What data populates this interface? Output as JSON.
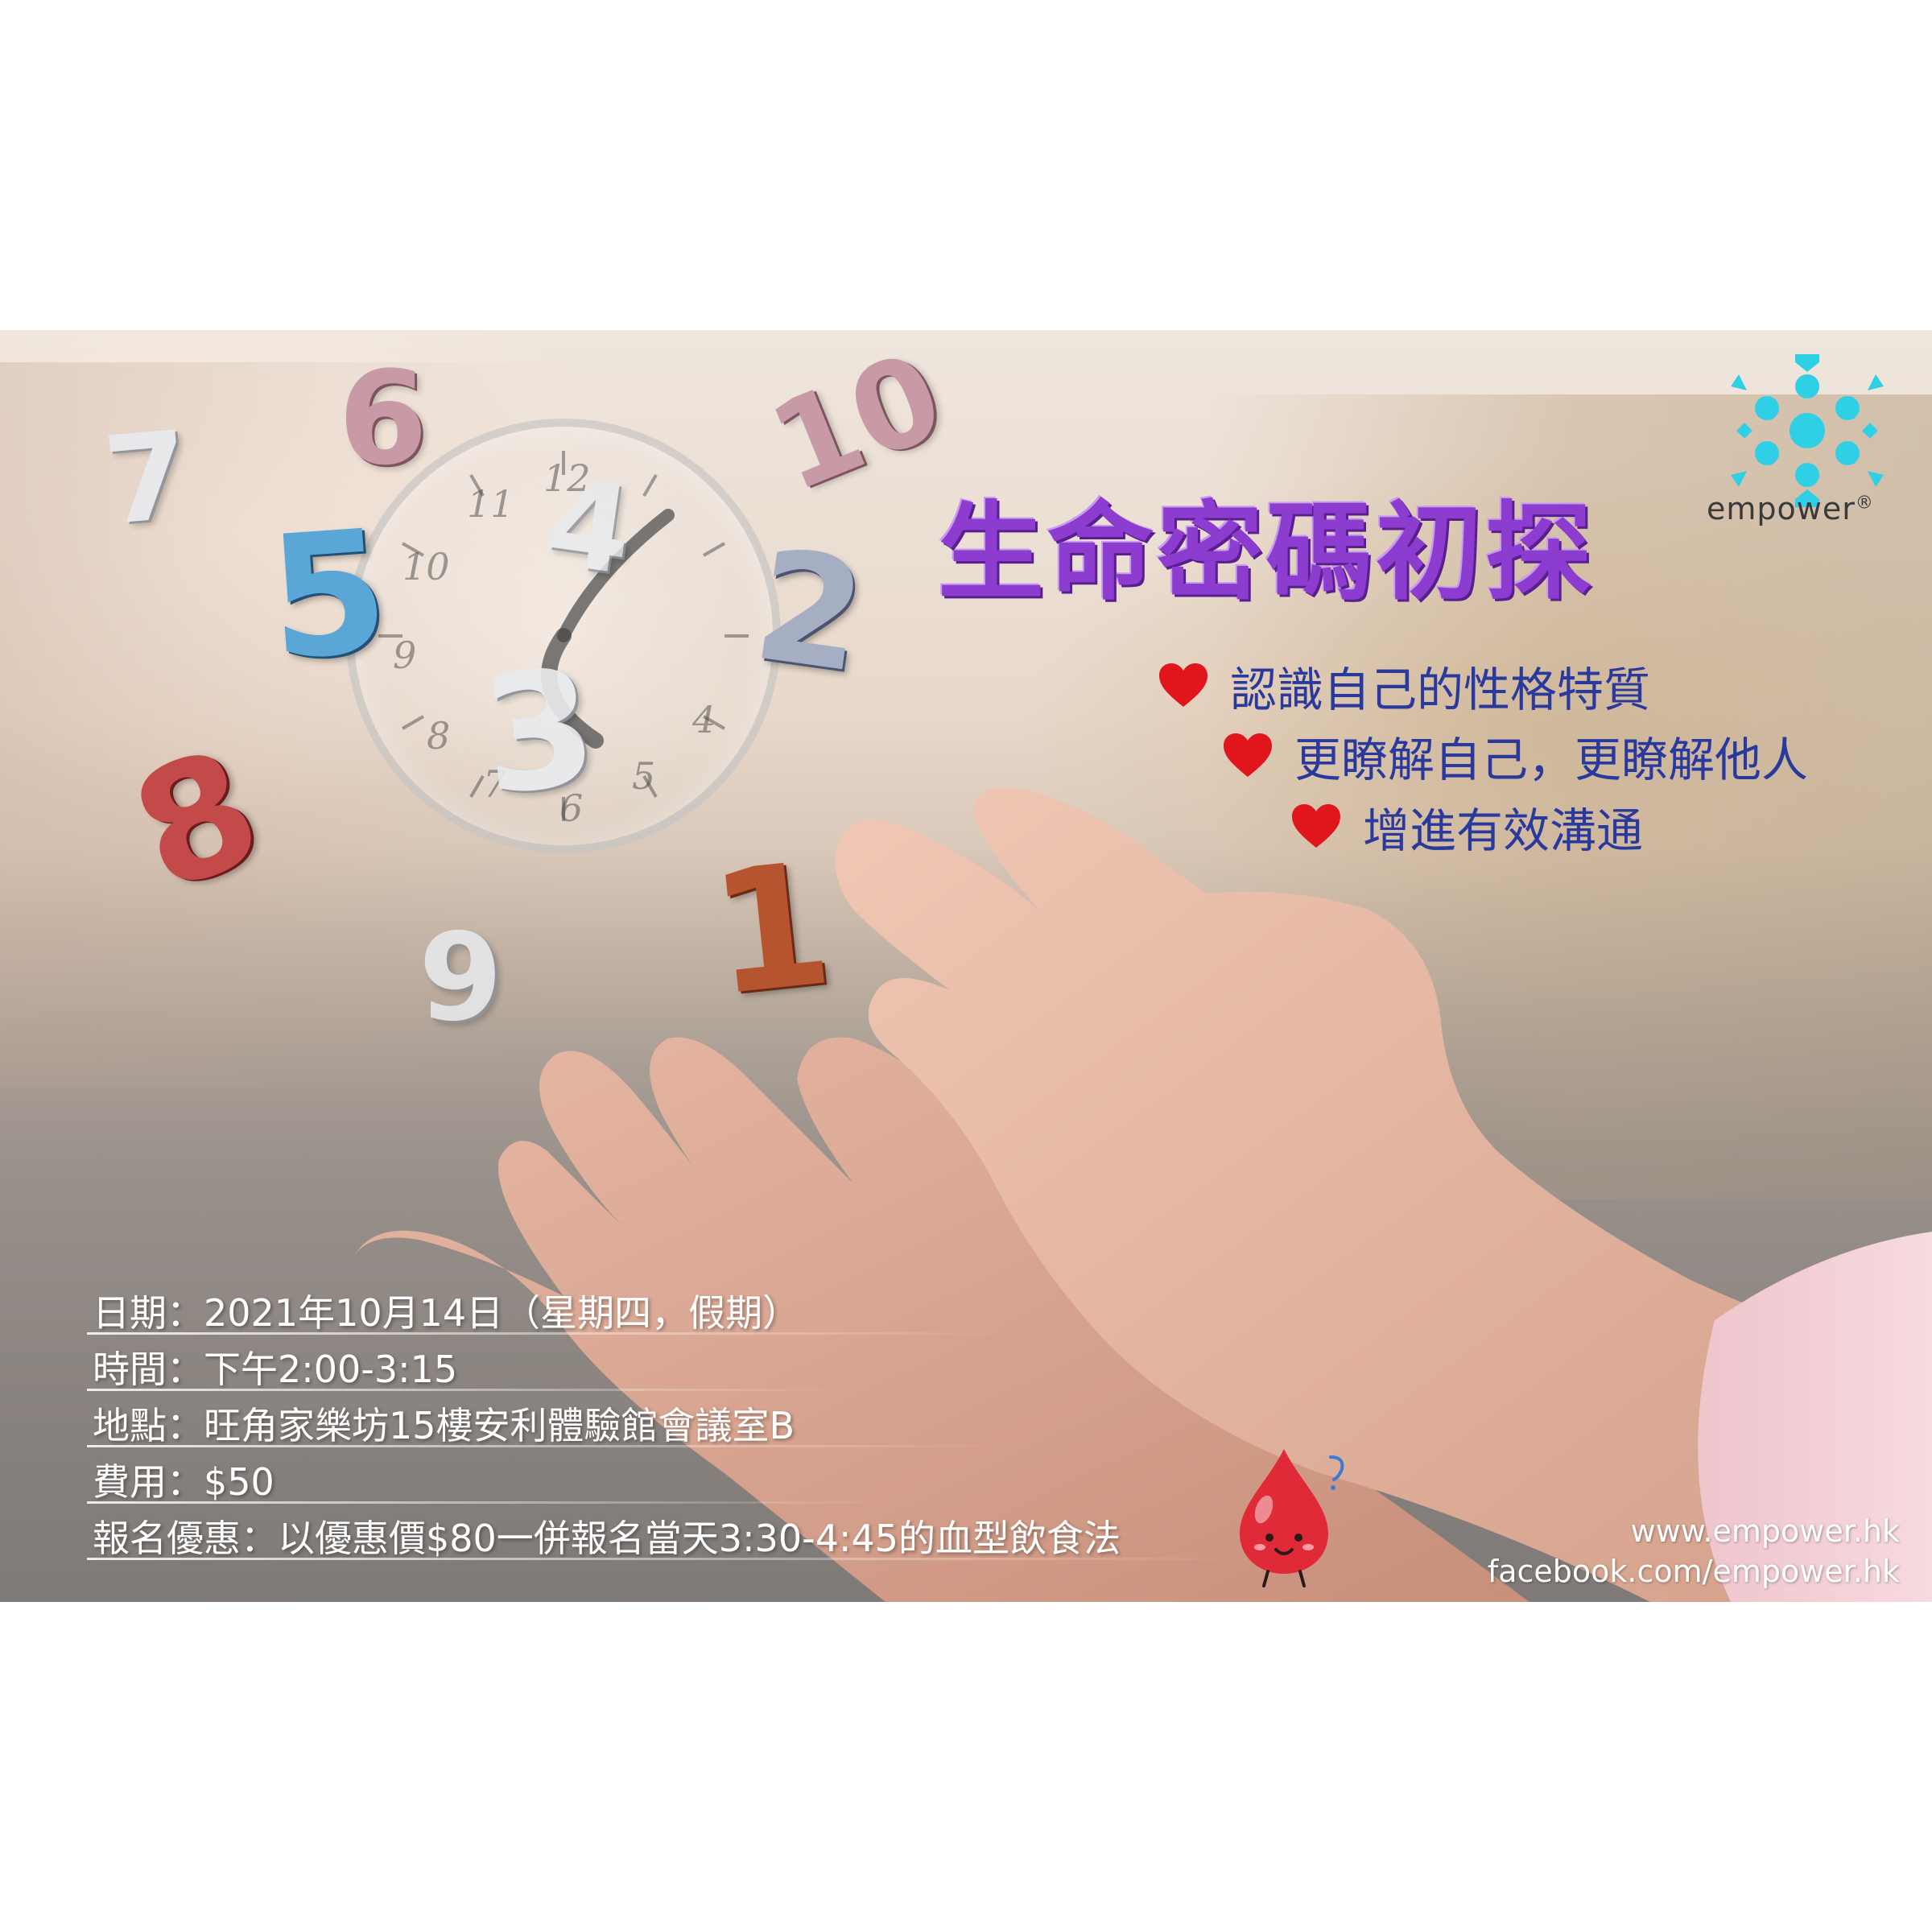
{
  "title": "生命密碼初探",
  "logo": {
    "name": "empower",
    "mark": "®",
    "color": "#2fd0e6"
  },
  "bullets": [
    {
      "text": "認識自己的性格特質",
      "icon": "heart-icon"
    },
    {
      "text": "更瞭解自己，更瞭解他人",
      "icon": "heart-icon"
    },
    {
      "text": "增進有效溝通",
      "icon": "heart-icon"
    }
  ],
  "details": [
    {
      "text": "日期：2021年10月14日（星期四，假期）"
    },
    {
      "text": "時間：下午2:00-3:15"
    },
    {
      "text": "地點：旺角家樂坊15樓安利體驗館會議室B"
    },
    {
      "text": "費用：$50"
    },
    {
      "text": "報名優惠：以優惠價$80一併報名當天3:30-4:45的血型飲食法"
    }
  ],
  "website": "www.empower.hk",
  "facebook": "facebook.com/empower.hk",
  "floating_numbers": [
    "7",
    "6",
    "10",
    "5",
    "2",
    "3",
    "4",
    "8",
    "9",
    "1"
  ],
  "clock_numbers": [
    "12",
    "11",
    "10",
    "9",
    "8",
    "7",
    "6",
    "5",
    "4"
  ],
  "mascot": "blood-drop-mascot-icon",
  "colors": {
    "title": "#8d3cd0",
    "bullet_text": "#2a3a9c",
    "heart": "#e0161c",
    "info_text": "#ffffff"
  }
}
